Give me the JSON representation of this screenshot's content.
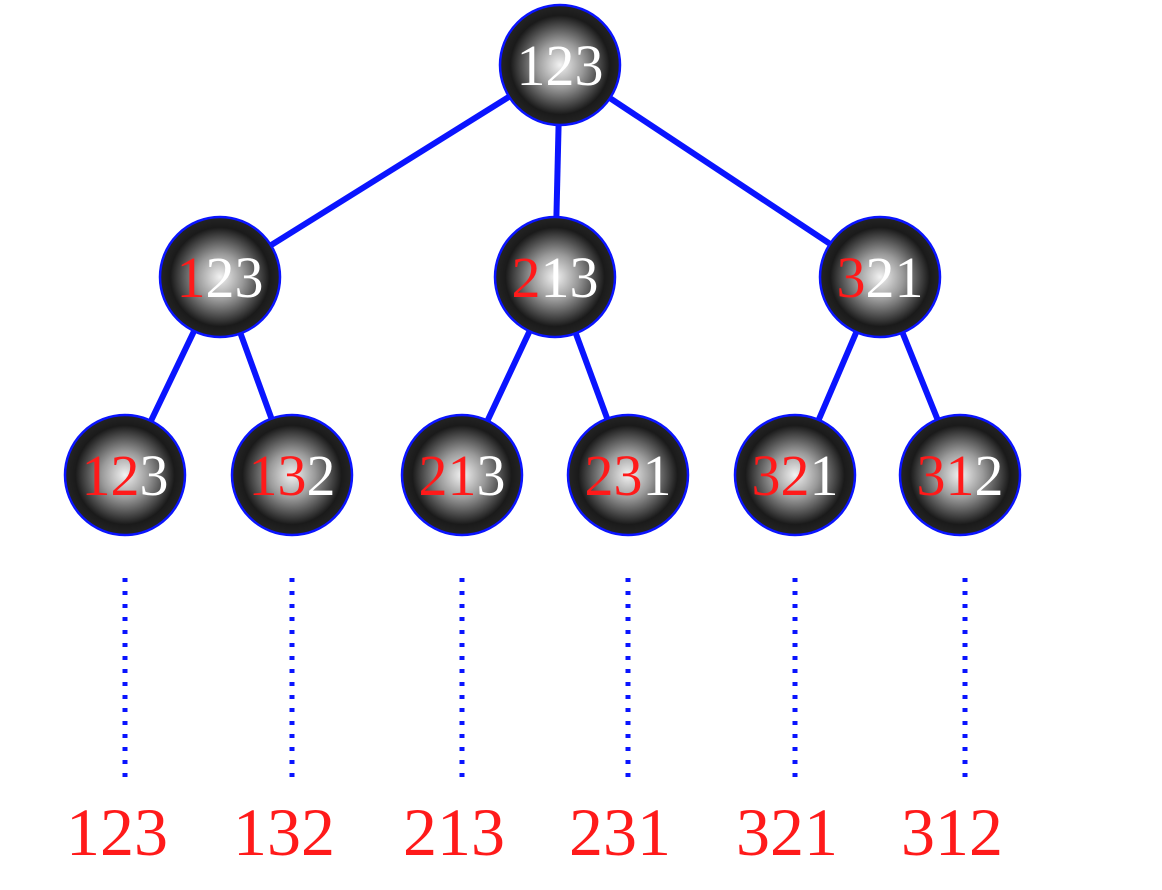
{
  "colors": {
    "edge": "#0a14ff",
    "dotted": "#0a14ff",
    "fixed_digit": "#ff1a1a",
    "free_digit": "#ffffff",
    "leaf_label": "#ff1a1a",
    "node_light": "#f2f2f2",
    "node_dark": "#1a1a1a"
  },
  "tree": {
    "root": {
      "label": "123",
      "fixed": 0
    },
    "level1": [
      {
        "label": "123",
        "fixed": 1
      },
      {
        "label": "213",
        "fixed": 1
      },
      {
        "label": "321",
        "fixed": 1
      }
    ],
    "level2": [
      {
        "label": "123",
        "fixed": 2,
        "parent": 0
      },
      {
        "label": "132",
        "fixed": 2,
        "parent": 0
      },
      {
        "label": "213",
        "fixed": 2,
        "parent": 1
      },
      {
        "label": "231",
        "fixed": 2,
        "parent": 1
      },
      {
        "label": "321",
        "fixed": 2,
        "parent": 2
      },
      {
        "label": "312",
        "fixed": 2,
        "parent": 2
      }
    ],
    "results": [
      "123",
      "132",
      "213",
      "231",
      "321",
      "312"
    ]
  }
}
